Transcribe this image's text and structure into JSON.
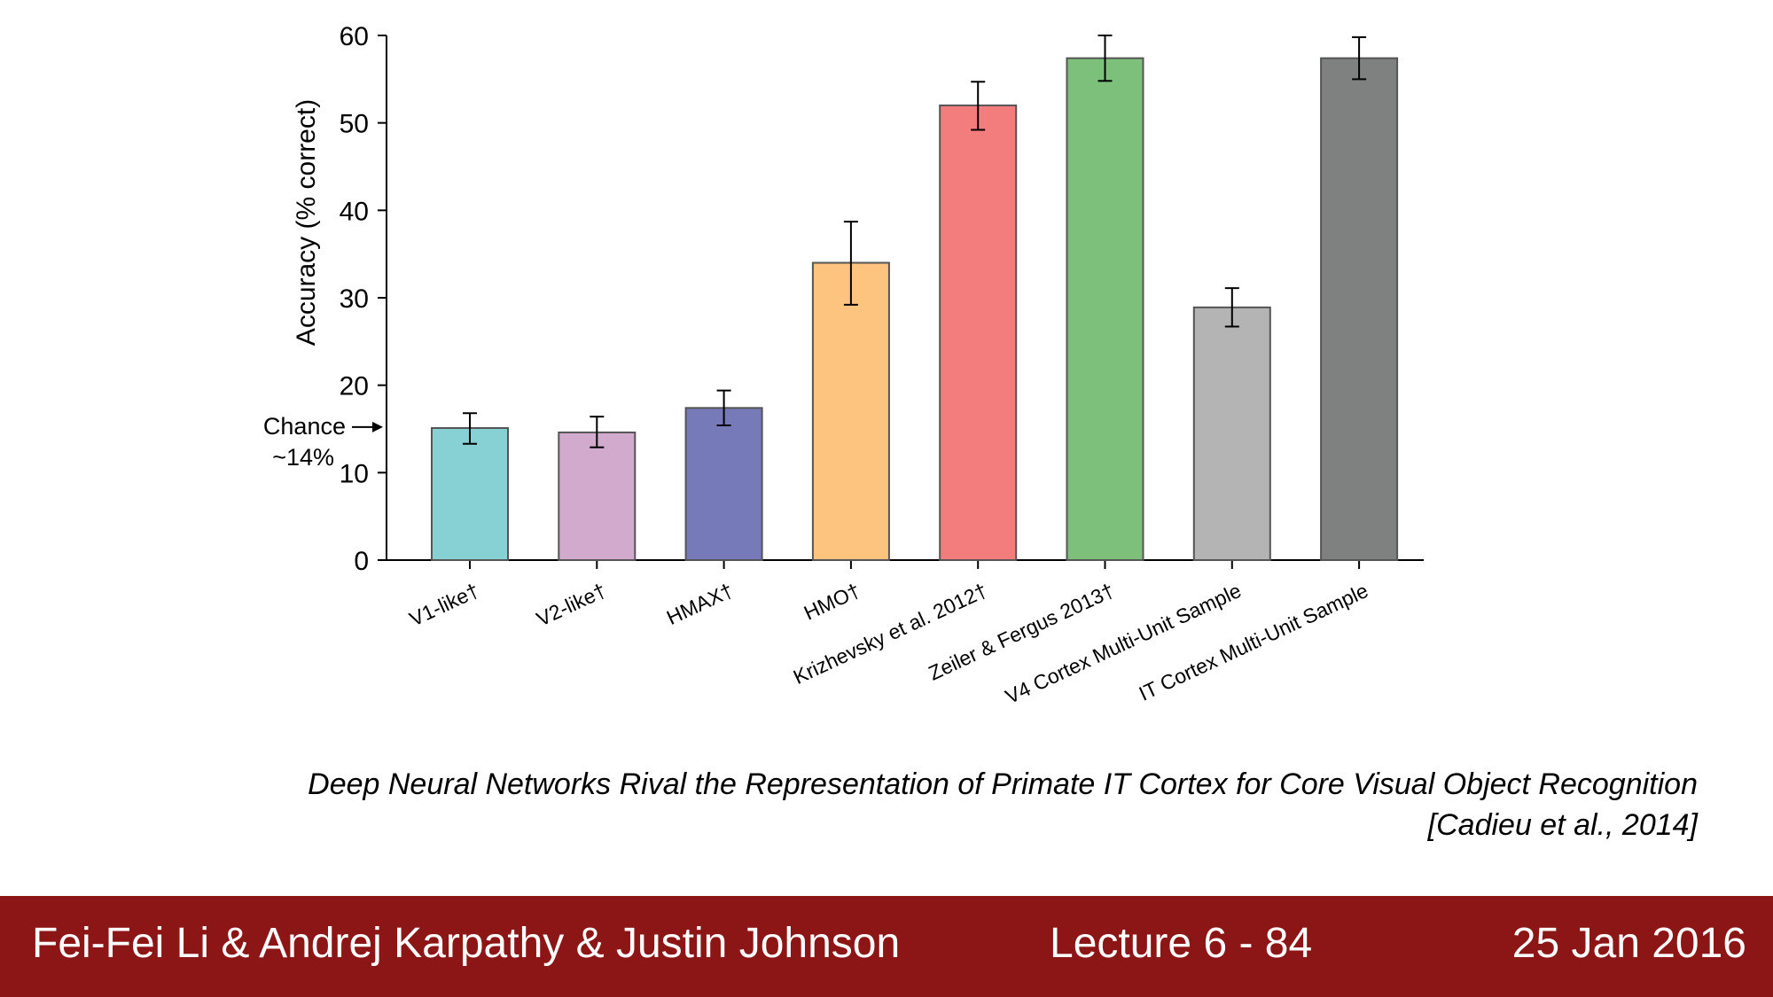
{
  "chart_data": {
    "type": "bar",
    "ylabel": "Accuracy (% correct)",
    "ylim": [
      0,
      60
    ],
    "yticks": [
      "0",
      "10",
      "20",
      "30",
      "40",
      "50",
      "60"
    ],
    "categories": [
      "V1-like†",
      "V2-like†",
      "HMAX†",
      "HMO†",
      "Krizhevsky et al. 2012†",
      "Zeiler & Fergus 2013†",
      "V4 Cortex Multi-Unit Sample",
      "IT Cortex Multi-Unit Sample"
    ],
    "values": [
      15.1,
      14.6,
      17.4,
      34.0,
      52.0,
      57.4,
      28.9,
      57.4
    ],
    "error_low": [
      13.3,
      12.9,
      15.4,
      29.2,
      49.2,
      54.8,
      26.7,
      55.0
    ],
    "error_high": [
      16.8,
      16.4,
      19.4,
      38.7,
      54.7,
      60.0,
      31.1,
      59.8
    ],
    "colors": [
      "#87d1d4",
      "#d2aacd",
      "#777ab9",
      "#fcc47f",
      "#f37c7d",
      "#7dc07c",
      "#b3b4b3",
      "#7f8080"
    ],
    "annotation": {
      "line1": "Chance",
      "line2": "~14%",
      "value": 14
    },
    "grid": false
  },
  "caption": {
    "line1": "Deep Neural Networks Rival the Representation of Primate IT Cortex for Core Visual Object Recognition",
    "line2": "[Cadieu et al., 2014]"
  },
  "footer": {
    "authors": "Fei-Fei Li & Andrej Karpathy & Justin Johnson",
    "lecture": "Lecture 6 - 84",
    "date": "25 Jan 2016",
    "background": "#8c1515"
  }
}
